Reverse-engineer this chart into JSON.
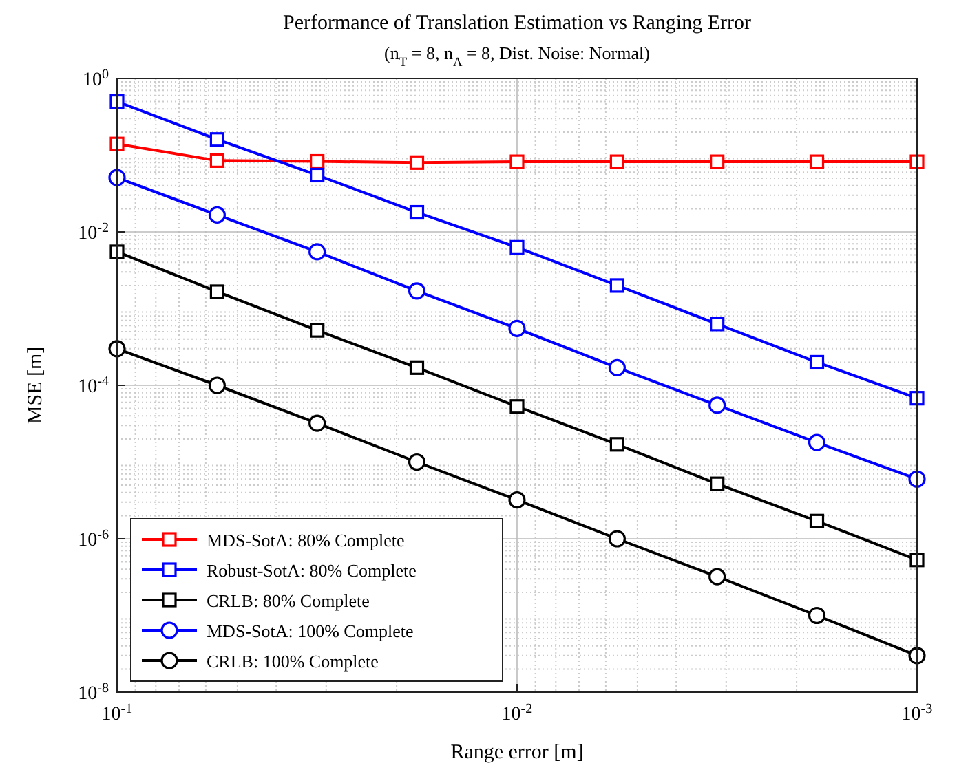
{
  "chart_data": {
    "type": "line",
    "title": "Performance of Translation Estimation vs Ranging Error",
    "subtitle": "(n$_{T}$ = 8, n$_{A}$ = 8, Dist. Noise: Normal)",
    "xlabel": "Range error [m]",
    "ylabel": "MSE [m]",
    "x": [
      0.1,
      0.0562,
      0.0316,
      0.0178,
      0.01,
      0.00562,
      0.00316,
      0.00178,
      0.001
    ],
    "log": "xy",
    "grid": true,
    "legend": "bottom left",
    "line_style": "solid",
    "xlim": [
      0.1,
      0.001
    ],
    "xticks": [
      {
        "value": 0.1,
        "label": "10$^{-1}$"
      },
      {
        "value": 0.01,
        "label": "10$^{-2}$"
      },
      {
        "value": 0.001,
        "label": "10$^{-3}$"
      }
    ],
    "ylim": [
      1e-08,
      1
    ],
    "yticks": [
      {
        "value": 1,
        "label": "10$^{0}$"
      },
      {
        "value": 0.01,
        "label": "10$^{-2}$"
      },
      {
        "value": 0.0001,
        "label": "10$^{-4}$"
      },
      {
        "value": 1e-06,
        "label": "10$^{-6}$"
      },
      {
        "value": 1e-08,
        "label": "10$^{-8}$"
      }
    ],
    "series": [
      {
        "name": "MDS-SotA: 80% Complete",
        "color": "#ff0000",
        "marker": "square",
        "values": [
          0.14,
          0.085,
          0.083,
          0.08,
          0.082,
          0.082,
          0.082,
          0.082,
          0.082
        ]
      },
      {
        "name": "Robust-SotA: 80% Complete",
        "color": "#0000ff",
        "marker": "square",
        "values": [
          0.5,
          0.16,
          0.055,
          0.018,
          0.0063,
          0.002,
          0.00063,
          0.0002,
          6.8e-05
        ]
      },
      {
        "name": "CRLB: 80% Complete",
        "color": "#000000",
        "marker": "square",
        "values": [
          0.0055,
          0.00166,
          0.00052,
          0.00017,
          5.3e-05,
          1.7e-05,
          5.2e-06,
          1.7e-06,
          5.3e-07
        ]
      },
      {
        "name": "MDS-SotA: 100% Complete",
        "color": "#0000ff",
        "marker": "circle",
        "values": [
          0.051,
          0.0166,
          0.0055,
          0.0017,
          0.00055,
          0.00017,
          5.5e-05,
          1.8e-05,
          6e-06
        ]
      },
      {
        "name": "CRLB: 100% Complete",
        "color": "#000000",
        "marker": "circle",
        "values": [
          0.0003,
          0.0001,
          3.2e-05,
          1e-05,
          3.2e-06,
          1e-06,
          3.2e-07,
          1e-07,
          3e-08
        ]
      }
    ]
  }
}
